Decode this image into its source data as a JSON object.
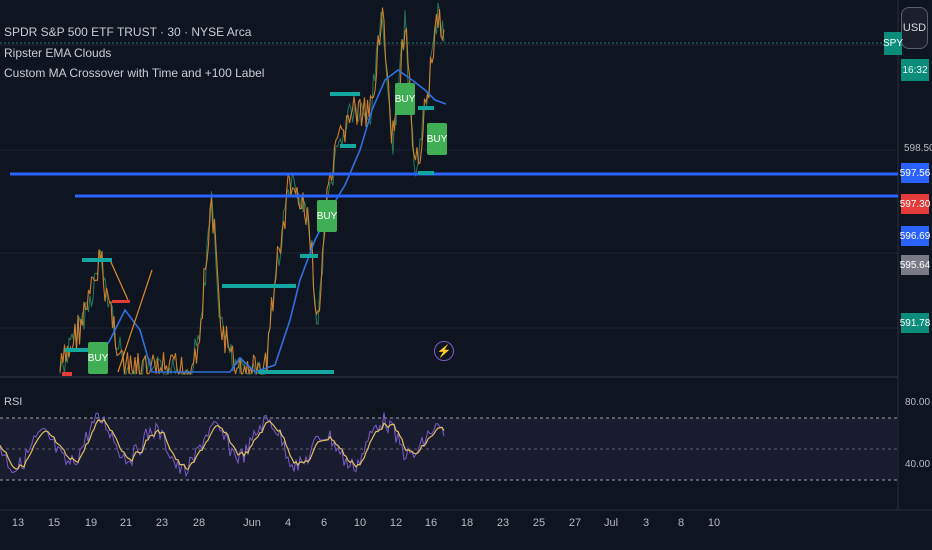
{
  "legend": {
    "symbol_line": "SPDR S&P 500 ETF TRUST · 30 · NYSE Arca",
    "indicator_1": "Ripster EMA Clouds",
    "indicator_2": "Custom MA Crossover with Time and +100 Label"
  },
  "toolbar": {
    "currency_button": "USD"
  },
  "price_axis": {
    "symbol_tag": "SPY",
    "countdown": "16:32",
    "tick_label": "598.50",
    "price_tags": [
      {
        "value": "597.56",
        "color": "#2962ff"
      },
      {
        "value": "597.30",
        "color": "#e5393a"
      },
      {
        "value": "596.69",
        "color": "#2962ff"
      },
      {
        "value": "595.64",
        "color": "#787b86"
      },
      {
        "value": "591.78",
        "color": "#0c8c7a"
      }
    ]
  },
  "rsi_pane": {
    "label": "RSI",
    "levels": [
      "80.00",
      "40.00"
    ]
  },
  "time_axis": [
    "13",
    "15",
    "19",
    "21",
    "23",
    "28",
    "Jun",
    "4",
    "6",
    "10",
    "12",
    "16",
    "18",
    "23",
    "25",
    "27",
    "Jul",
    "3",
    "8",
    "10"
  ],
  "buy_labels": [
    "BUY",
    "BUY",
    "BUY",
    "BUY"
  ],
  "colors": {
    "background": "#0f1520",
    "accent_blue": "#2962ff",
    "teal": "#0c8c7a",
    "ema_blue": "#2f6fe0",
    "price_orange": "#e08a2c",
    "rsi_purple": "#7a5cc9",
    "rsi_yellow": "#e0c060"
  },
  "chart_data": {
    "type": "line",
    "title": "SPDR S&P 500 ETF TRUST · 30 · NYSE Arca",
    "y_tick": 598.5,
    "horizontal_levels": [
      597.56,
      596.69
    ],
    "last_prices": [
      597.56,
      597.3,
      596.69,
      595.64,
      591.78
    ],
    "rsi_levels": [
      80,
      40
    ],
    "x_labels": [
      "13",
      "15",
      "19",
      "21",
      "23",
      "28",
      "Jun",
      "4",
      "6",
      "10",
      "12",
      "16",
      "18",
      "23",
      "25",
      "27",
      "Jul",
      "3",
      "8",
      "10"
    ]
  }
}
